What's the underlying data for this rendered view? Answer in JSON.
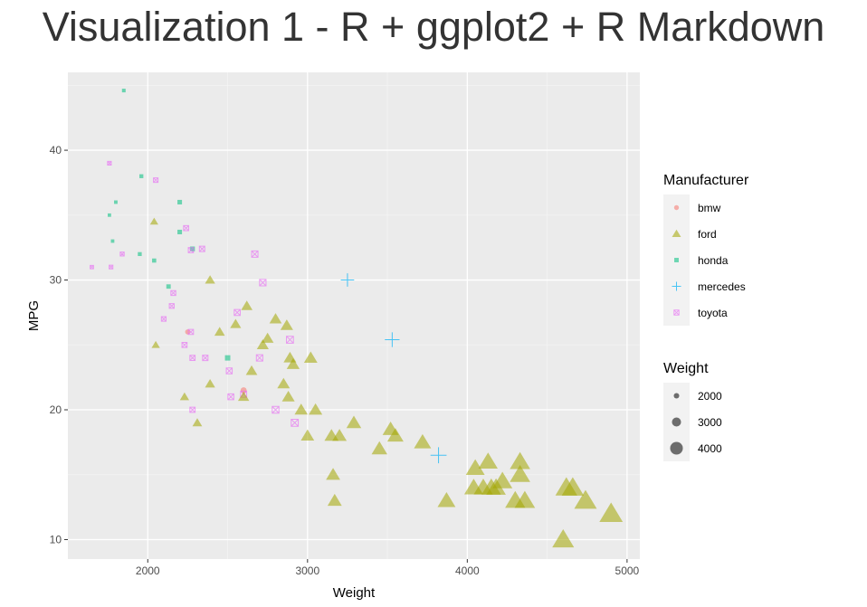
{
  "page": {
    "title": "Visualization 1 - R + ggplot2 + R Markdown"
  },
  "chart_data": {
    "type": "scatter",
    "xlabel": "Weight",
    "ylabel": "MPG",
    "xlim": [
      1500,
      5080
    ],
    "ylim": [
      8.5,
      46
    ],
    "xticks": [
      2000,
      3000,
      4000,
      5000
    ],
    "yticks": [
      10,
      20,
      30,
      40
    ],
    "grid": true,
    "colors": {
      "panel": "#ebebeb",
      "grid_major": "#ffffff",
      "grid_minor": "#f4f4f4",
      "bmw": "#F8766D",
      "ford": "#A3A500",
      "honda": "#00BF7D",
      "mercedes": "#00B0F6",
      "toyota": "#E76BF3"
    },
    "legends": {
      "manufacturer": {
        "title": "Manufacturer",
        "placement": "right",
        "entries": [
          {
            "label": "bmw",
            "shape": "circle"
          },
          {
            "label": "ford",
            "shape": "triangle"
          },
          {
            "label": "honda",
            "shape": "square"
          },
          {
            "label": "mercedes",
            "shape": "plus"
          },
          {
            "label": "toyota",
            "shape": "square-x"
          }
        ]
      },
      "size": {
        "title": "Weight",
        "placement": "right",
        "entries": [
          {
            "label": "2000",
            "value": 2000
          },
          {
            "label": "3000",
            "value": 3000
          },
          {
            "label": "4000",
            "value": 4000
          }
        ]
      }
    },
    "series": [
      {
        "name": "bmw",
        "shape": "circle",
        "points": [
          [
            2250,
            26
          ],
          [
            2600,
            21.5
          ]
        ]
      },
      {
        "name": "honda",
        "shape": "square",
        "points": [
          [
            1850,
            44.6
          ],
          [
            1960,
            38
          ],
          [
            1800,
            36
          ],
          [
            1760,
            35
          ],
          [
            1780,
            33
          ],
          [
            1950,
            32
          ],
          [
            2040,
            31.5
          ],
          [
            2200,
            36
          ],
          [
            2200,
            33.7
          ],
          [
            2280,
            32.4
          ],
          [
            2130,
            29.5
          ],
          [
            2500,
            24
          ]
        ]
      },
      {
        "name": "mercedes",
        "shape": "plus",
        "points": [
          [
            3250,
            30
          ],
          [
            3530,
            25.4
          ],
          [
            3820,
            16.5
          ]
        ]
      },
      {
        "name": "toyota",
        "shape": "square-x",
        "points": [
          [
            1760,
            39
          ],
          [
            1650,
            31
          ],
          [
            1770,
            31
          ],
          [
            1840,
            32
          ],
          [
            2050,
            37.7
          ],
          [
            2240,
            34
          ],
          [
            2270,
            32.3
          ],
          [
            2340,
            32.4
          ],
          [
            2160,
            29
          ],
          [
            2150,
            28
          ],
          [
            2100,
            27
          ],
          [
            2230,
            25
          ],
          [
            2270,
            26
          ],
          [
            2280,
            24
          ],
          [
            2360,
            24
          ],
          [
            2510,
            23
          ],
          [
            2520,
            21
          ],
          [
            2560,
            27.5
          ],
          [
            2670,
            32
          ],
          [
            2720,
            29.8
          ],
          [
            2700,
            24
          ],
          [
            2600,
            21.2
          ],
          [
            2280,
            20
          ],
          [
            2800,
            20
          ],
          [
            2890,
            25.4
          ],
          [
            2920,
            19
          ]
        ]
      },
      {
        "name": "ford",
        "shape": "triangle",
        "points": [
          [
            2040,
            34.5
          ],
          [
            2050,
            25
          ],
          [
            2230,
            21
          ],
          [
            2310,
            19
          ],
          [
            2390,
            30
          ],
          [
            2390,
            22
          ],
          [
            2450,
            26
          ],
          [
            2550,
            26.6
          ],
          [
            2600,
            21
          ],
          [
            2620,
            28
          ],
          [
            2650,
            23
          ],
          [
            2720,
            25
          ],
          [
            2750,
            25.5
          ],
          [
            2800,
            27
          ],
          [
            2850,
            22
          ],
          [
            2870,
            26.5
          ],
          [
            2890,
            24
          ],
          [
            2880,
            21
          ],
          [
            2910,
            23.5
          ],
          [
            2960,
            20
          ],
          [
            3000,
            18
          ],
          [
            3020,
            24
          ],
          [
            3050,
            20
          ],
          [
            3150,
            18
          ],
          [
            3160,
            15
          ],
          [
            3170,
            13
          ],
          [
            3200,
            18
          ],
          [
            3290,
            19
          ],
          [
            3450,
            17
          ],
          [
            3520,
            18.5
          ],
          [
            3550,
            18
          ],
          [
            3720,
            17.5
          ],
          [
            3870,
            13
          ],
          [
            4050,
            15.5
          ],
          [
            4040,
            14
          ],
          [
            4100,
            14
          ],
          [
            4130,
            16
          ],
          [
            4150,
            14
          ],
          [
            4180,
            14
          ],
          [
            4220,
            14.5
          ],
          [
            4300,
            13
          ],
          [
            4330,
            16
          ],
          [
            4330,
            15
          ],
          [
            4360,
            13
          ],
          [
            4600,
            10
          ],
          [
            4620,
            14
          ],
          [
            4660,
            14
          ],
          [
            4740,
            13
          ],
          [
            4900,
            12
          ]
        ]
      }
    ]
  }
}
